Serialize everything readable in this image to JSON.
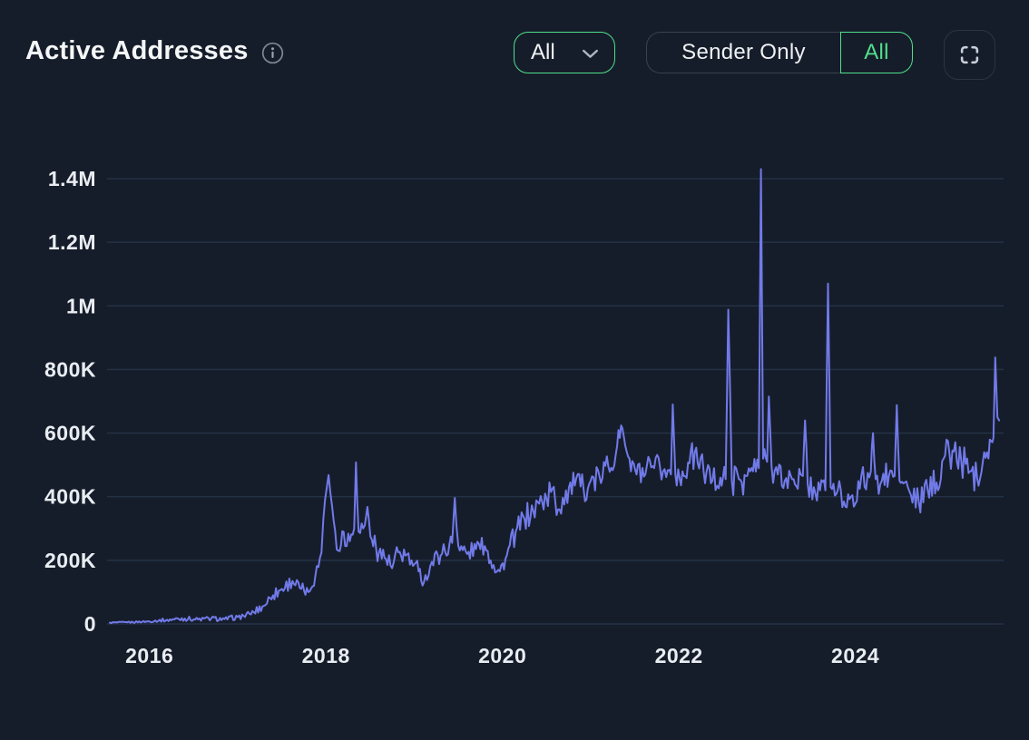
{
  "header": {
    "title": "Active Addresses",
    "filters": {
      "range_dropdown": {
        "value": "All"
      },
      "segmented_control": {
        "options": [
          "Sender Only",
          "All"
        ],
        "selected": "All"
      }
    },
    "icons": {
      "info": "info-icon (circled i)",
      "dropdown_chevron": "chevron-down-icon",
      "fullscreen": "fullscreen-corners-icon"
    }
  },
  "colors": {
    "background": "#161d2a",
    "accent_green": "#50df8c",
    "line": "#717ae9",
    "grid": "#243247",
    "text_primary": "#f4f6f8",
    "text_tick": "#e9edf2",
    "border_muted": "#39424f"
  },
  "chart_data": {
    "type": "line",
    "title": "Active Addresses",
    "xlabel": "",
    "ylabel": "",
    "grid": true,
    "legend": false,
    "xlim": [
      2015.54,
      2025.68
    ],
    "ylim": [
      0,
      1500000
    ],
    "x_ticks": [
      {
        "value": 2016,
        "label": "2016"
      },
      {
        "value": 2018,
        "label": "2018"
      },
      {
        "value": 2020,
        "label": "2020"
      },
      {
        "value": 2022,
        "label": "2022"
      },
      {
        "value": 2024,
        "label": "2024"
      }
    ],
    "y_ticks": [
      {
        "value": 0,
        "label": "0"
      },
      {
        "value": 200000,
        "label": "200K"
      },
      {
        "value": 400000,
        "label": "400K"
      },
      {
        "value": 600000,
        "label": "600K"
      },
      {
        "value": 800000,
        "label": "800K"
      },
      {
        "value": 1000000,
        "label": "1M"
      },
      {
        "value": 1200000,
        "label": "1.2M"
      },
      {
        "value": 1400000,
        "label": "1.4M"
      }
    ],
    "series": [
      {
        "name": "Active Addresses",
        "color": "#717ae9",
        "points_format": [
          "year_fraction",
          "value",
          "daily_noise_amplitude"
        ],
        "points": [
          [
            2015.55,
            4000,
            2000
          ],
          [
            2015.75,
            5000,
            2500
          ],
          [
            2016.0,
            8000,
            3000
          ],
          [
            2016.2,
            13000,
            6000
          ],
          [
            2016.4,
            17000,
            8000
          ],
          [
            2016.55,
            14000,
            6000
          ],
          [
            2016.7,
            17000,
            8000
          ],
          [
            2016.85,
            15000,
            7000
          ],
          [
            2017.0,
            22000,
            9000
          ],
          [
            2017.15,
            30000,
            11000
          ],
          [
            2017.28,
            55000,
            15000
          ],
          [
            2017.4,
            90000,
            20000
          ],
          [
            2017.5,
            110000,
            22000
          ],
          [
            2017.62,
            135000,
            22000
          ],
          [
            2017.72,
            110000,
            20000
          ],
          [
            2017.8,
            100000,
            18000
          ],
          [
            2017.88,
            150000,
            22000
          ],
          [
            2017.95,
            225000,
            28000
          ],
          [
            2017.99,
            390000,
            25000
          ],
          [
            2018.03,
            468000,
            5000
          ],
          [
            2018.07,
            370000,
            30000
          ],
          [
            2018.14,
            230000,
            35000
          ],
          [
            2018.2,
            290000,
            40000
          ],
          [
            2018.27,
            260000,
            35000
          ],
          [
            2018.32,
            300000,
            25000
          ],
          [
            2018.34,
            508000,
            0
          ],
          [
            2018.37,
            290000,
            35000
          ],
          [
            2018.44,
            310000,
            40000
          ],
          [
            2018.47,
            368000,
            10000
          ],
          [
            2018.52,
            265000,
            40000
          ],
          [
            2018.6,
            225000,
            40000
          ],
          [
            2018.68,
            205000,
            35000
          ],
          [
            2018.75,
            175000,
            30000
          ],
          [
            2018.82,
            225000,
            35000
          ],
          [
            2018.9,
            215000,
            35000
          ],
          [
            2018.97,
            200000,
            30000
          ],
          [
            2019.05,
            165000,
            30000
          ],
          [
            2019.11,
            130000,
            18000
          ],
          [
            2019.2,
            195000,
            30000
          ],
          [
            2019.3,
            215000,
            30000
          ],
          [
            2019.4,
            250000,
            35000
          ],
          [
            2019.43,
            255000,
            30000
          ],
          [
            2019.46,
            396000,
            0
          ],
          [
            2019.5,
            245000,
            30000
          ],
          [
            2019.6,
            220000,
            32000
          ],
          [
            2019.7,
            235000,
            32000
          ],
          [
            2019.8,
            245000,
            30000
          ],
          [
            2019.9,
            185000,
            28000
          ],
          [
            2019.97,
            165000,
            22000
          ],
          [
            2020.05,
            215000,
            30000
          ],
          [
            2020.15,
            290000,
            40000
          ],
          [
            2020.25,
            330000,
            42000
          ],
          [
            2020.35,
            355000,
            45000
          ],
          [
            2020.45,
            385000,
            45000
          ],
          [
            2020.55,
            415000,
            48000
          ],
          [
            2020.63,
            360000,
            55000
          ],
          [
            2020.72,
            420000,
            48000
          ],
          [
            2020.82,
            435000,
            45000
          ],
          [
            2020.92,
            425000,
            45000
          ],
          [
            2021.0,
            450000,
            48000
          ],
          [
            2021.1,
            465000,
            50000
          ],
          [
            2021.2,
            495000,
            50000
          ],
          [
            2021.3,
            560000,
            45000
          ],
          [
            2021.36,
            615000,
            25000
          ],
          [
            2021.44,
            520000,
            45000
          ],
          [
            2021.52,
            470000,
            48000
          ],
          [
            2021.62,
            470000,
            50000
          ],
          [
            2021.72,
            490000,
            48000
          ],
          [
            2021.82,
            480000,
            45000
          ],
          [
            2021.91,
            470000,
            35000
          ],
          [
            2021.93,
            690000,
            0
          ],
          [
            2021.96,
            470000,
            40000
          ],
          [
            2022.04,
            480000,
            45000
          ],
          [
            2022.12,
            505000,
            48000
          ],
          [
            2022.18,
            540000,
            45000
          ],
          [
            2022.28,
            480000,
            48000
          ],
          [
            2022.38,
            450000,
            45000
          ],
          [
            2022.47,
            460000,
            42000
          ],
          [
            2022.53,
            455000,
            40000
          ],
          [
            2022.56,
            988000,
            0
          ],
          [
            2022.6,
            450000,
            45000
          ],
          [
            2022.68,
            455000,
            55000
          ],
          [
            2022.76,
            465000,
            55000
          ],
          [
            2022.84,
            480000,
            50000
          ],
          [
            2022.905,
            490000,
            45000
          ],
          [
            2022.93,
            1430000,
            0
          ],
          [
            2022.955,
            520000,
            40000
          ],
          [
            2023.0,
            510000,
            35000
          ],
          [
            2023.02,
            715000,
            0
          ],
          [
            2023.05,
            495000,
            45000
          ],
          [
            2023.12,
            470000,
            50000
          ],
          [
            2023.2,
            450000,
            50000
          ],
          [
            2023.3,
            455000,
            50000
          ],
          [
            2023.38,
            470000,
            50000
          ],
          [
            2023.405,
            465000,
            40000
          ],
          [
            2023.43,
            640000,
            0
          ],
          [
            2023.46,
            440000,
            45000
          ],
          [
            2023.53,
            430000,
            48000
          ],
          [
            2023.6,
            420000,
            45000
          ],
          [
            2023.66,
            420000,
            40000
          ],
          [
            2023.69,
            1070000,
            0
          ],
          [
            2023.72,
            430000,
            45000
          ],
          [
            2023.8,
            420000,
            48000
          ],
          [
            2023.87,
            385000,
            45000
          ],
          [
            2023.95,
            400000,
            45000
          ],
          [
            2024.05,
            425000,
            48000
          ],
          [
            2024.14,
            475000,
            50000
          ],
          [
            2024.175,
            480000,
            40000
          ],
          [
            2024.2,
            600000,
            0
          ],
          [
            2024.23,
            455000,
            40000
          ],
          [
            2024.3,
            450000,
            48000
          ],
          [
            2024.38,
            465000,
            50000
          ],
          [
            2024.445,
            465000,
            40000
          ],
          [
            2024.47,
            688000,
            0
          ],
          [
            2024.5,
            450000,
            40000
          ],
          [
            2024.56,
            445000,
            45000
          ],
          [
            2024.63,
            405000,
            48000
          ],
          [
            2024.72,
            380000,
            42000
          ],
          [
            2024.82,
            420000,
            48000
          ],
          [
            2024.92,
            445000,
            45000
          ],
          [
            2025.0,
            520000,
            55000
          ],
          [
            2025.1,
            545000,
            55000
          ],
          [
            2025.2,
            515000,
            55000
          ],
          [
            2025.3,
            480000,
            50000
          ],
          [
            2025.38,
            460000,
            48000
          ],
          [
            2025.46,
            540000,
            50000
          ],
          [
            2025.54,
            575000,
            35000
          ],
          [
            2025.565,
            585000,
            25000
          ],
          [
            2025.585,
            838000,
            0
          ],
          [
            2025.61,
            650000,
            18000
          ],
          [
            2025.63,
            640000,
            8000
          ]
        ]
      }
    ]
  }
}
